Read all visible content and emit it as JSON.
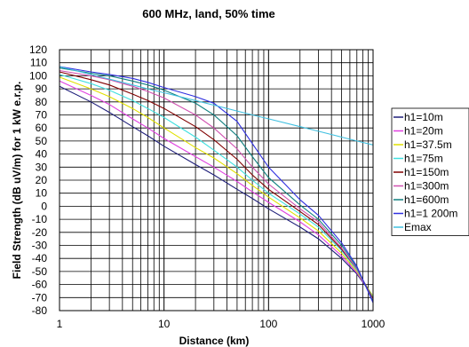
{
  "chart_data": {
    "type": "line",
    "title": "600 MHz, land, 50% time",
    "xlabel": "Distance (km)",
    "ylabel": "Field Strength (dB uV/m) for 1 kW e.r.p.",
    "x_scale": "log",
    "xlim": [
      1,
      1000
    ],
    "ylim": [
      -80,
      120
    ],
    "x_ticks": [
      "1",
      "10",
      "100",
      "1000"
    ],
    "y_ticks": [
      "120",
      "110",
      "100",
      "90",
      "80",
      "70",
      "60",
      "50",
      "40",
      "30",
      "20",
      "10",
      "0",
      "-10",
      "-20",
      "-30",
      "-40",
      "-50",
      "-60",
      "-70",
      "-80"
    ],
    "grid": true,
    "legend_position": "right",
    "series": [
      {
        "name": "h1=10m",
        "color": "#1f1f7a",
        "x": [
          1,
          2,
          3,
          5,
          7,
          10,
          20,
          30,
          50,
          70,
          100,
          200,
          300,
          500,
          700,
          1000
        ],
        "y": [
          92,
          80,
          72,
          61,
          54,
          46,
          32,
          24,
          13,
          6,
          -2,
          -16,
          -25,
          -40,
          -52,
          -69
        ]
      },
      {
        "name": "h1=20m",
        "color": "#e040e0",
        "x": [
          1,
          2,
          3,
          5,
          7,
          10,
          20,
          30,
          50,
          70,
          100,
          200,
          300,
          500,
          700,
          1000
        ],
        "y": [
          96,
          85,
          78,
          67,
          60,
          52,
          38,
          30,
          19,
          11,
          3,
          -12,
          -22,
          -38,
          -51,
          -69
        ]
      },
      {
        "name": "h1=37.5m",
        "color": "#e0e000",
        "x": [
          1,
          2,
          3,
          5,
          7,
          10,
          20,
          30,
          50,
          70,
          100,
          200,
          300,
          500,
          700,
          1000
        ],
        "y": [
          99,
          90,
          84,
          75,
          68,
          60,
          45,
          37,
          25,
          16,
          7,
          -9,
          -19,
          -36,
          -50,
          -69
        ]
      },
      {
        "name": "h1=75m",
        "color": "#40e0e0",
        "x": [
          1,
          2,
          3,
          5,
          7,
          10,
          20,
          30,
          50,
          70,
          100,
          200,
          300,
          500,
          700,
          1000
        ],
        "y": [
          101,
          94,
          89,
          81,
          75,
          68,
          53,
          43,
          30,
          20,
          10,
          -6,
          -16,
          -34,
          -49,
          -70
        ]
      },
      {
        "name": "h1=150m",
        "color": "#800000",
        "x": [
          1,
          2,
          3,
          5,
          7,
          10,
          20,
          30,
          50,
          70,
          100,
          200,
          300,
          500,
          700,
          1000
        ],
        "y": [
          103,
          97,
          93,
          86,
          81,
          75,
          61,
          51,
          36,
          24,
          13,
          -4,
          -14,
          -33,
          -48,
          -71
        ]
      },
      {
        "name": "h1=300m",
        "color": "#d050b0",
        "x": [
          1,
          2,
          3,
          5,
          7,
          10,
          20,
          30,
          50,
          70,
          100,
          200,
          300,
          500,
          700,
          1000
        ],
        "y": [
          104,
          100,
          97,
          92,
          88,
          83,
          70,
          60,
          44,
          30,
          17,
          -2,
          -12,
          -32,
          -48,
          -72
        ]
      },
      {
        "name": "h1=600m",
        "color": "#108080",
        "x": [
          1,
          2,
          3,
          5,
          7,
          10,
          20,
          30,
          50,
          70,
          100,
          200,
          300,
          500,
          700,
          1000
        ],
        "y": [
          106,
          102,
          100,
          96,
          93,
          89,
          79,
          70,
          54,
          38,
          22,
          1,
          -10,
          -30,
          -47,
          -73
        ]
      },
      {
        "name": "h1=1 200m",
        "color": "#3030e0",
        "x": [
          1,
          2,
          3,
          5,
          7,
          10,
          20,
          30,
          50,
          70,
          100,
          200,
          300,
          500,
          700,
          1000
        ],
        "y": [
          107,
          103,
          101,
          98,
          95,
          91,
          84,
          79,
          65,
          48,
          30,
          5,
          -7,
          -28,
          -46,
          -74
        ]
      },
      {
        "name": "Emax",
        "color": "#40c0e0",
        "x": [
          1,
          2,
          3,
          5,
          7,
          10,
          20,
          30,
          50,
          70,
          100,
          200,
          300,
          500,
          700,
          1000
        ],
        "y": [
          107,
          101,
          97.5,
          93,
          90,
          87,
          81,
          77.5,
          73,
          70,
          67,
          61,
          57.5,
          53,
          50,
          47
        ]
      }
    ]
  }
}
